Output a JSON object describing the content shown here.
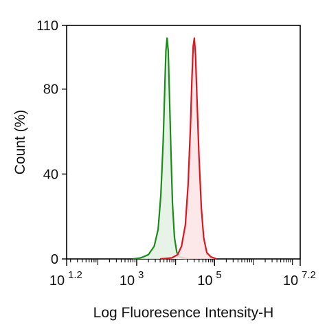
{
  "chart_data": {
    "type": "area",
    "title": "",
    "xlabel": "Log Fluoresence Intensity-H",
    "ylabel": "Count  (%)",
    "x_scale": "log10",
    "xlim_exponent": [
      1.2,
      7.2
    ],
    "ylim": [
      0,
      110
    ],
    "y_ticks": [
      0,
      40,
      80,
      110
    ],
    "x_ticks": [
      {
        "base": "10",
        "exponent": "1.2",
        "value_exponent": 1.2
      },
      {
        "base": "10",
        "exponent": "3",
        "value_exponent": 3
      },
      {
        "base": "10",
        "exponent": "5",
        "value_exponent": 5
      },
      {
        "base": "10",
        "exponent": "7.2",
        "value_exponent": 7.2
      }
    ],
    "grid": false,
    "legend": "none",
    "series": [
      {
        "color": "#1a8c1a",
        "fill": "#e3f1e3",
        "x_exponent": [
          2.9,
          3.1,
          3.3,
          3.45,
          3.55,
          3.62,
          3.68,
          3.72,
          3.75,
          3.78,
          3.81,
          3.84,
          3.88,
          3.92,
          3.97,
          4.03,
          4.1,
          4.2,
          4.35
        ],
        "y": [
          0,
          0.5,
          2,
          6,
          14,
          30,
          55,
          80,
          98,
          104,
          98,
          78,
          50,
          26,
          10,
          3,
          1,
          0.3,
          0
        ]
      },
      {
        "color": "#e0141e",
        "fill": "#fbe3e5",
        "x_exponent": [
          3.6,
          3.9,
          4.05,
          4.15,
          4.25,
          4.32,
          4.38,
          4.42,
          4.45,
          4.48,
          4.51,
          4.55,
          4.6,
          4.66,
          4.72,
          4.8,
          4.9,
          5.05
        ],
        "y": [
          0,
          0.5,
          2,
          6,
          16,
          35,
          62,
          86,
          100,
          104,
          96,
          75,
          48,
          24,
          10,
          3,
          1,
          0
        ]
      }
    ]
  }
}
